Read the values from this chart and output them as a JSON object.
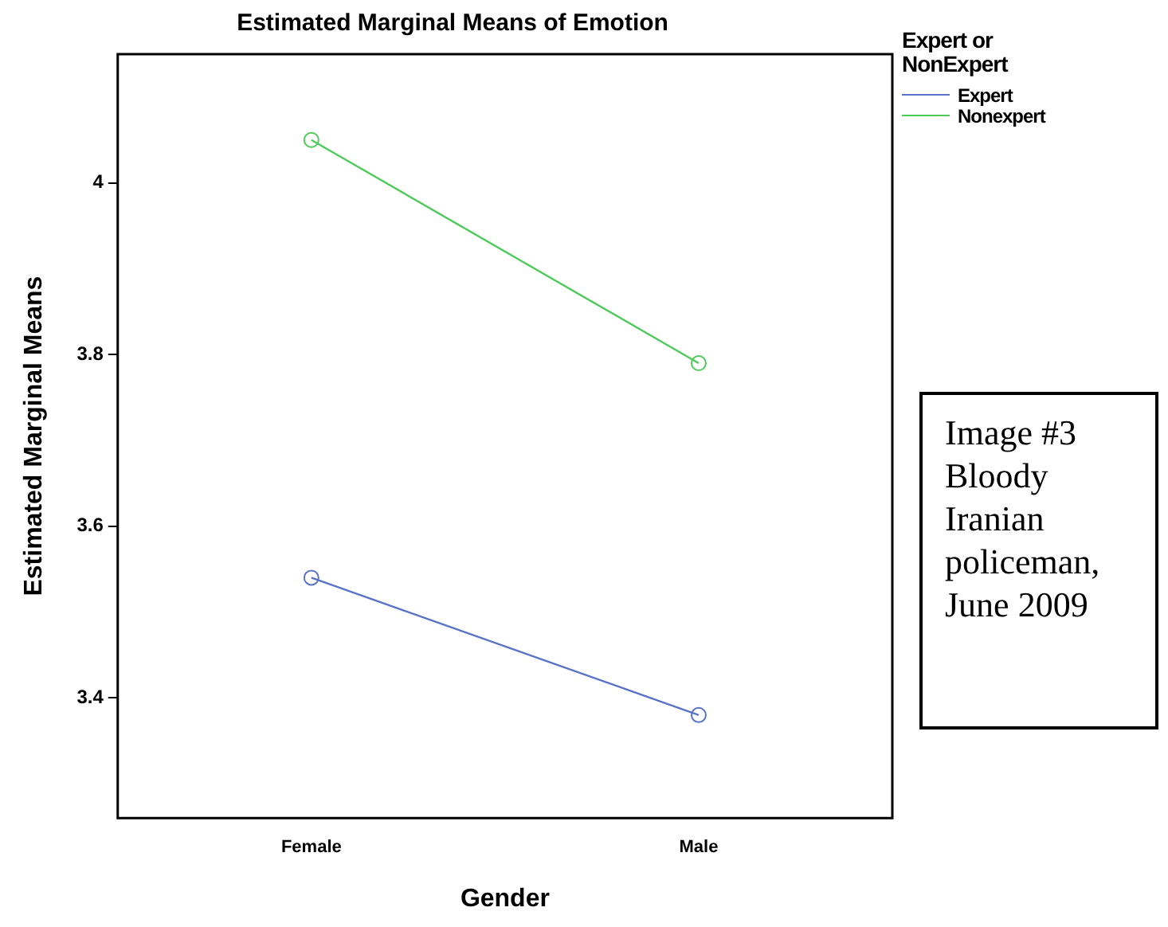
{
  "chart_data": {
    "type": "line",
    "title": "Estimated Marginal Means of Emotion",
    "xlabel": "Gender",
    "ylabel": "Estimated Marginal Means",
    "legend_title": "Expert or NonExpert",
    "categories": [
      "Female",
      "Male"
    ],
    "series": [
      {
        "name": "Expert",
        "color": "#5a73c8",
        "values": [
          3.54,
          3.38
        ]
      },
      {
        "name": "Nonexpert",
        "color": "#4ec95a",
        "values": [
          4.05,
          3.79
        ]
      }
    ],
    "ylim": [
      3.26,
      4.15
    ],
    "yticks": [
      3.4,
      3.6,
      3.8,
      {
        "value": 4,
        "label": "4"
      }
    ],
    "grid": false,
    "legend": "top right",
    "marker": "circle",
    "line_style": "solid",
    "annotations": [
      "Image #3 Bloody Iranian policeman, June 2009"
    ]
  }
}
